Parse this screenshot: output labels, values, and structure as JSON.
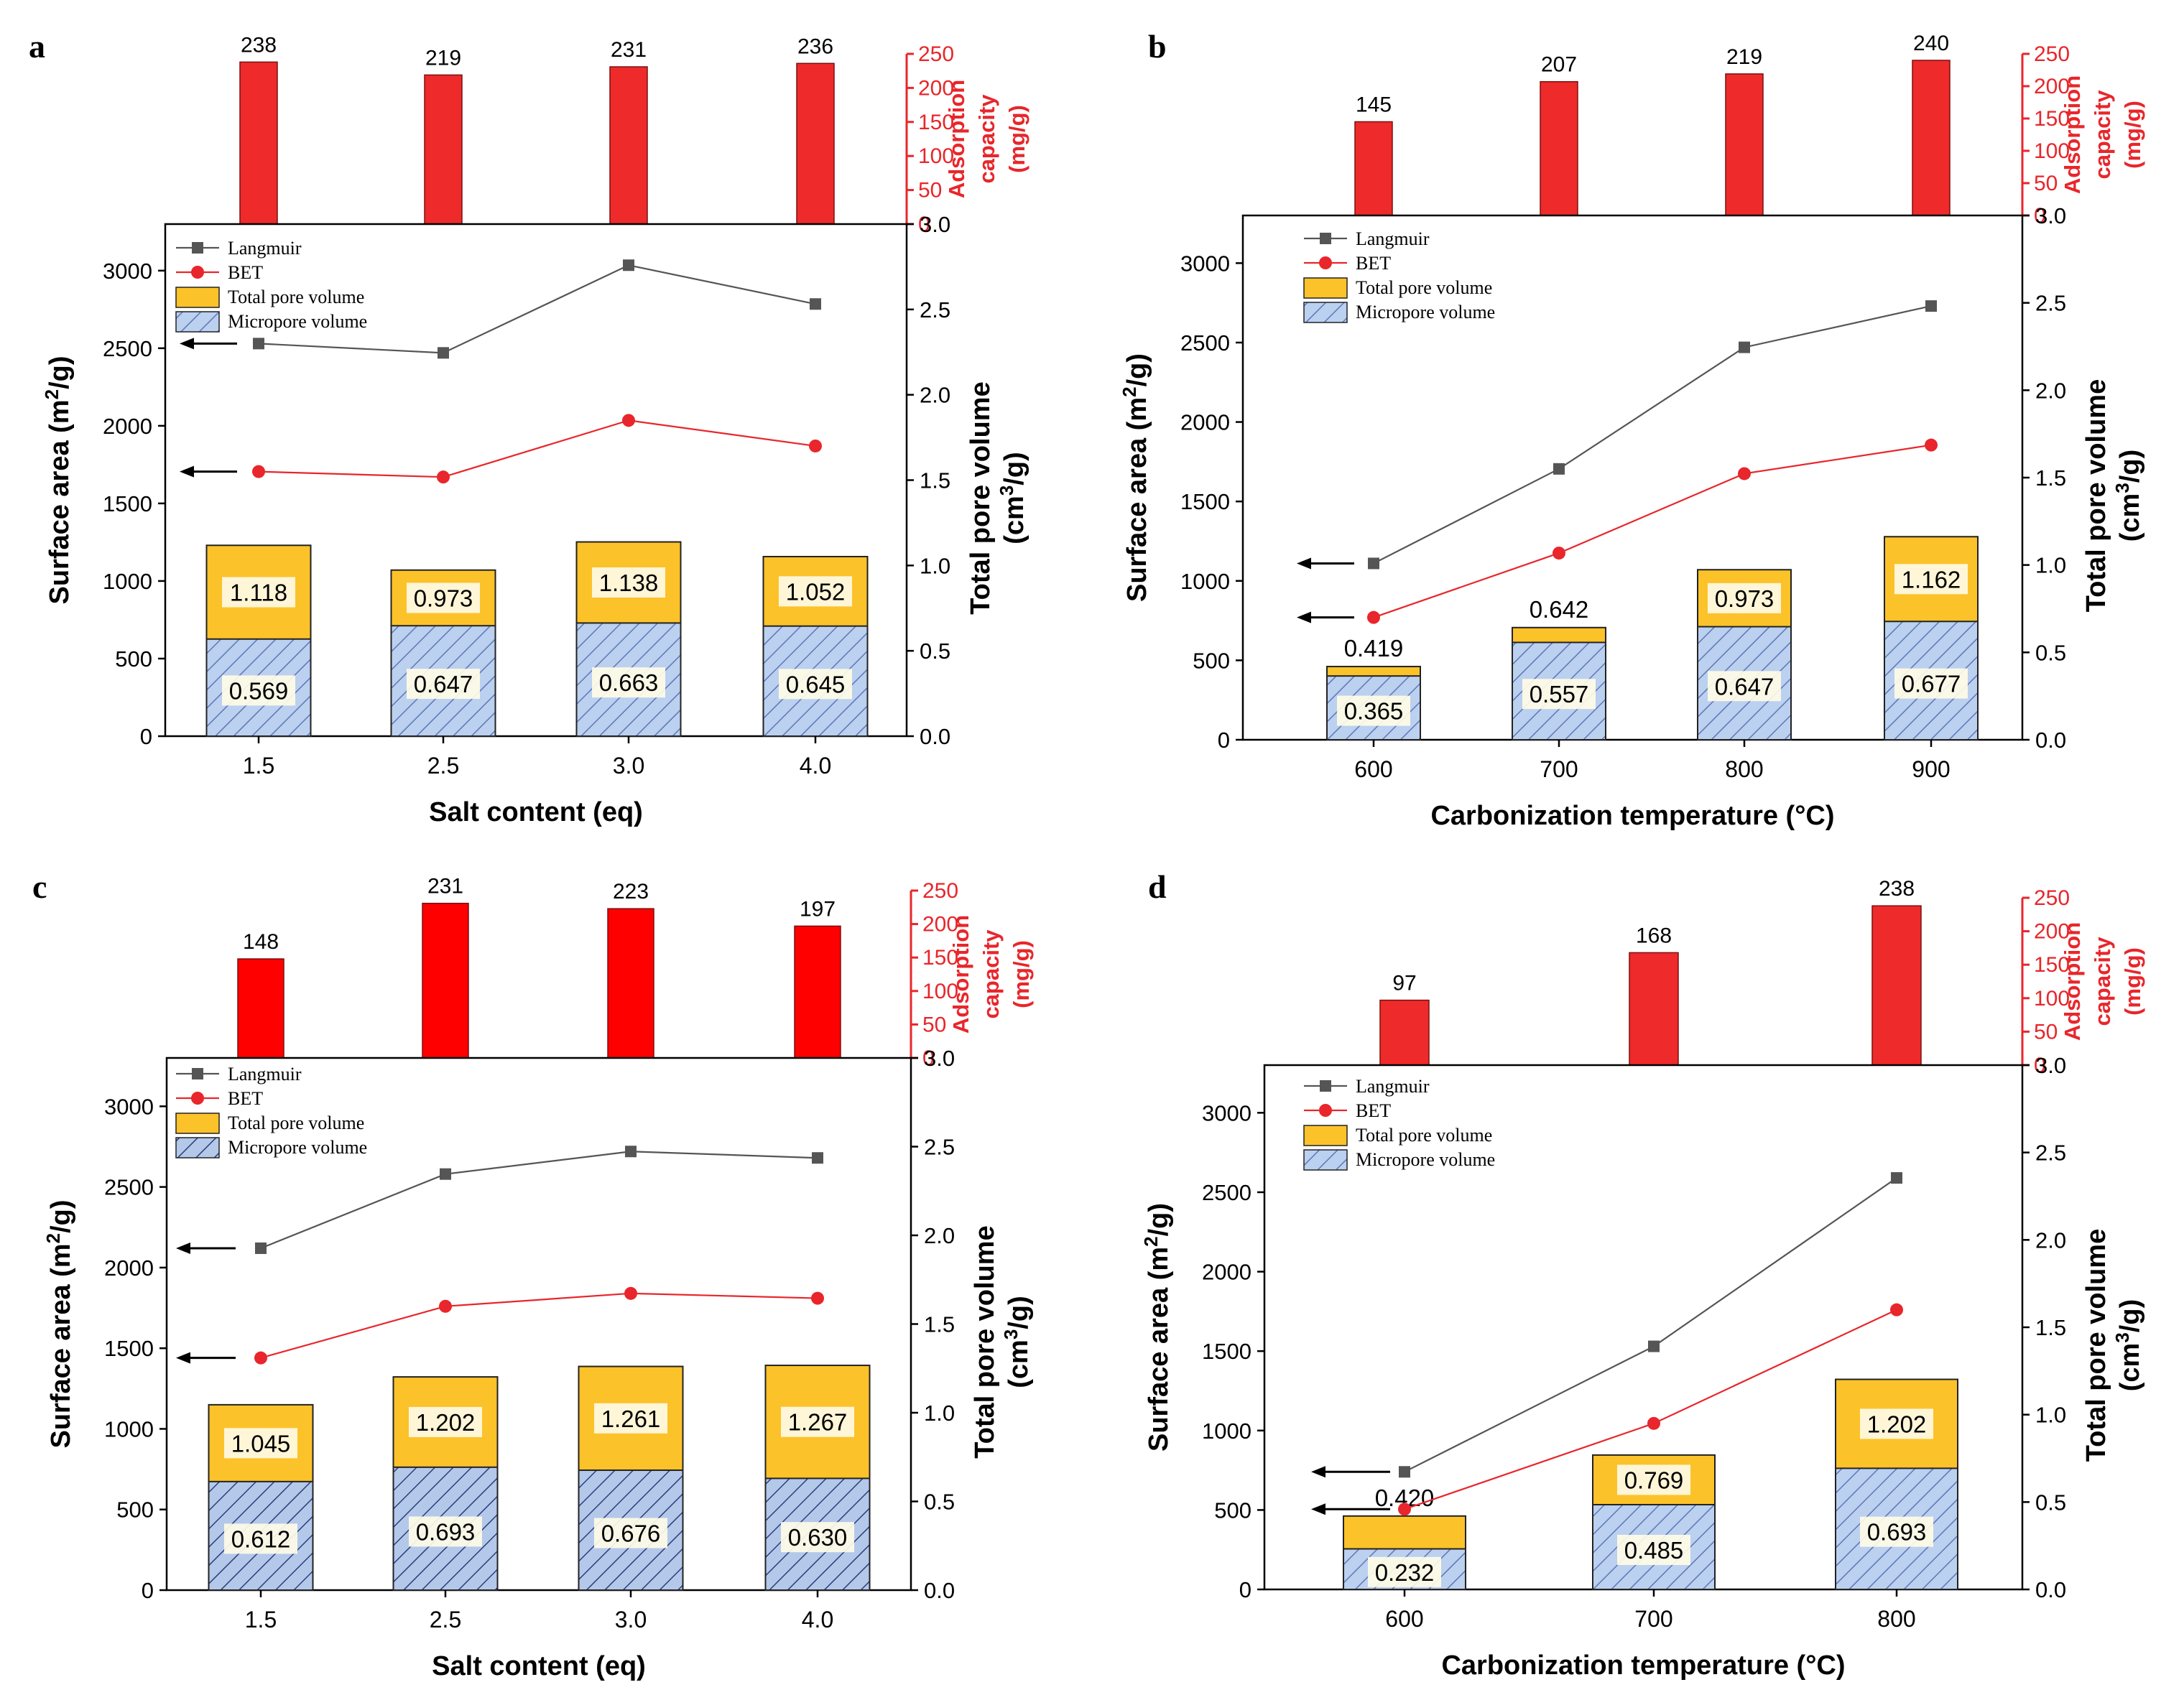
{
  "chart_data": [
    {
      "type": "bar",
      "panel_label": "a",
      "categories": [
        "1.5",
        "2.5",
        "3.0",
        "4.0"
      ],
      "xlabel": "Salt content (eq)",
      "top_bars": {
        "values": [
          238,
          219,
          231,
          236
        ],
        "ylabel_line1": "Adsorption",
        "ylabel_line2": "capacity",
        "ylabel_line3": "(mg/g)",
        "ylim": [
          0,
          250
        ],
        "ticks": [
          0,
          50,
          100,
          150,
          200,
          250
        ],
        "color": "#ee2a2a"
      },
      "surface_area": {
        "ylabel_main": "Surface area (m",
        "ylabel_sup": "2",
        "ylabel_end": "/g)",
        "ylim": [
          0,
          3300
        ],
        "ticks": [
          0,
          500,
          1000,
          1500,
          2000,
          2500,
          3000
        ],
        "langmuir": [
          2530,
          2470,
          3035,
          2785
        ],
        "bet": [
          1705,
          1670,
          2035,
          1870
        ]
      },
      "pore_volume": {
        "ylabel_main": "Total pore volume",
        "ylabel_line2": "(cm",
        "ylabel_sup": "3",
        "ylabel_end": "/g)",
        "ylim": [
          0,
          3.0
        ],
        "ticks": [
          "0.0",
          "0.5",
          "1.0",
          "1.5",
          "2.0",
          "2.5",
          "3.0"
        ],
        "total": [
          1.118,
          0.973,
          1.138,
          1.052
        ],
        "total_labels": [
          "1.118",
          "0.973",
          "1.138",
          "1.052"
        ],
        "micro": [
          0.569,
          0.647,
          0.663,
          0.645
        ],
        "micro_labels": [
          "0.569",
          "0.647",
          "0.663",
          "0.645"
        ]
      },
      "legend": [
        "Langmuir",
        "BET",
        "Total pore volume",
        "Micropore volume"
      ]
    },
    {
      "type": "bar",
      "panel_label": "b",
      "categories": [
        "600",
        "700",
        "800",
        "900"
      ],
      "xlabel": "Carbonization temperature (°C)",
      "top_bars": {
        "values": [
          145,
          207,
          219,
          240
        ],
        "ylabel_line1": "Adsorption",
        "ylabel_line2": "capacity",
        "ylabel_line3": "(mg/g)",
        "ylim": [
          0,
          250
        ],
        "ticks": [
          0,
          50,
          100,
          150,
          200,
          250
        ],
        "color": "#ee2a2a"
      },
      "surface_area": {
        "ylabel_main": "Surface area (m",
        "ylabel_sup": "2",
        "ylabel_end": "/g)",
        "ylim": [
          0,
          3300
        ],
        "ticks": [
          0,
          500,
          1000,
          1500,
          2000,
          2500,
          3000
        ],
        "langmuir": [
          1110,
          1705,
          2470,
          2730
        ],
        "bet": [
          770,
          1175,
          1675,
          1855
        ]
      },
      "pore_volume": {
        "ylabel_main": "Total pore volume",
        "ylabel_line2": "(cm",
        "ylabel_sup": "3",
        "ylabel_end": "/g)",
        "ylim": [
          0,
          3.0
        ],
        "ticks": [
          "0.0",
          "0.5",
          "1.0",
          "1.5",
          "2.0",
          "2.5",
          "3.0"
        ],
        "total": [
          0.419,
          0.642,
          0.973,
          1.162
        ],
        "total_labels": [
          "0.419",
          "0.642",
          "0.973",
          "1.162"
        ],
        "micro": [
          0.365,
          0.557,
          0.647,
          0.677
        ],
        "micro_labels": [
          "0.365",
          "0.557",
          "0.647",
          "0.677"
        ]
      },
      "legend": [
        "Langmuir",
        "BET",
        "Total pore volume",
        "Micropore volume"
      ]
    },
    {
      "type": "bar",
      "panel_label": "c",
      "categories": [
        "1.5",
        "2.5",
        "3.0",
        "4.0"
      ],
      "xlabel": "Salt content (eq)",
      "top_bars": {
        "values": [
          148,
          231,
          223,
          197
        ],
        "ylabel_line1": "Adsorption",
        "ylabel_line2": "capacity",
        "ylabel_line3": "(mg/g)",
        "ylim": [
          0,
          250
        ],
        "ticks": [
          0,
          50,
          100,
          150,
          200,
          250
        ],
        "color": "#ff0000"
      },
      "surface_area": {
        "ylabel_main": "Surface area (m",
        "ylabel_sup": "2",
        "ylabel_end": "/g)",
        "ylim": [
          0,
          3300
        ],
        "ticks": [
          0,
          500,
          1000,
          1500,
          2000,
          2500,
          3000
        ],
        "langmuir": [
          2120,
          2580,
          2720,
          2680
        ],
        "bet": [
          1440,
          1760,
          1840,
          1810
        ]
      },
      "pore_volume": {
        "ylabel_main": "Total pore volume",
        "ylabel_line2": "(cm",
        "ylabel_sup": "3",
        "ylabel_end": "/g)",
        "ylim": [
          0,
          3.0
        ],
        "ticks": [
          "0.0",
          "0.5",
          "1.0",
          "1.5",
          "2.0",
          "2.5",
          "3.0"
        ],
        "total": [
          1.045,
          1.202,
          1.261,
          1.267
        ],
        "total_labels": [
          "1.045",
          "1.202",
          "1.261",
          "1.267"
        ],
        "micro": [
          0.612,
          0.693,
          0.676,
          0.63
        ],
        "micro_labels": [
          "0.612",
          "0.693",
          "0.676",
          "0.630"
        ]
      },
      "legend": [
        "Langmuir",
        "BET",
        "Total pore volume",
        "Micropore volume"
      ]
    },
    {
      "type": "bar",
      "panel_label": "d",
      "categories": [
        "600",
        "700",
        "800"
      ],
      "xlabel": "Carbonization temperature (°C)",
      "top_bars": {
        "values": [
          97,
          168,
          238
        ],
        "ylabel_line1": "Adsorption",
        "ylabel_line2": "capacity",
        "ylabel_line3": "(mg/g)",
        "ylim": [
          0,
          250
        ],
        "ticks": [
          0,
          50,
          100,
          150,
          200,
          250
        ],
        "color": "#ee2a2a"
      },
      "surface_area": {
        "ylabel_main": "Surface area (m",
        "ylabel_sup": "2",
        "ylabel_end": "/g)",
        "ylim": [
          0,
          3300
        ],
        "ticks": [
          0,
          500,
          1000,
          1500,
          2000,
          2500,
          3000
        ],
        "langmuir": [
          740,
          1530,
          2590
        ],
        "bet": [
          505,
          1045,
          1760
        ]
      },
      "pore_volume": {
        "ylabel_main": "Total pore volume",
        "ylabel_line2": "(cm",
        "ylabel_sup": "3",
        "ylabel_end": "/g)",
        "ylim": [
          0,
          3.0
        ],
        "ticks": [
          "0.0",
          "0.5",
          "1.0",
          "1.5",
          "2.0",
          "2.5",
          "3.0"
        ],
        "total": [
          0.42,
          0.769,
          1.202
        ],
        "total_labels": [
          "0.420",
          "0.769",
          "1.202"
        ],
        "micro": [
          0.232,
          0.485,
          0.693
        ],
        "micro_labels": [
          "0.232",
          "0.485",
          "0.693"
        ]
      },
      "legend": [
        "Langmuir",
        "BET",
        "Total pore volume",
        "Micropore volume"
      ]
    }
  ],
  "colors": {
    "langmuir": "#555555",
    "bet": "#e8262b",
    "total_fill": "#fcc22a",
    "micro_fill": "#bcd0ef",
    "hatch": "#5b78b8",
    "axis": "#000000",
    "red_axis": "#e8262b"
  }
}
